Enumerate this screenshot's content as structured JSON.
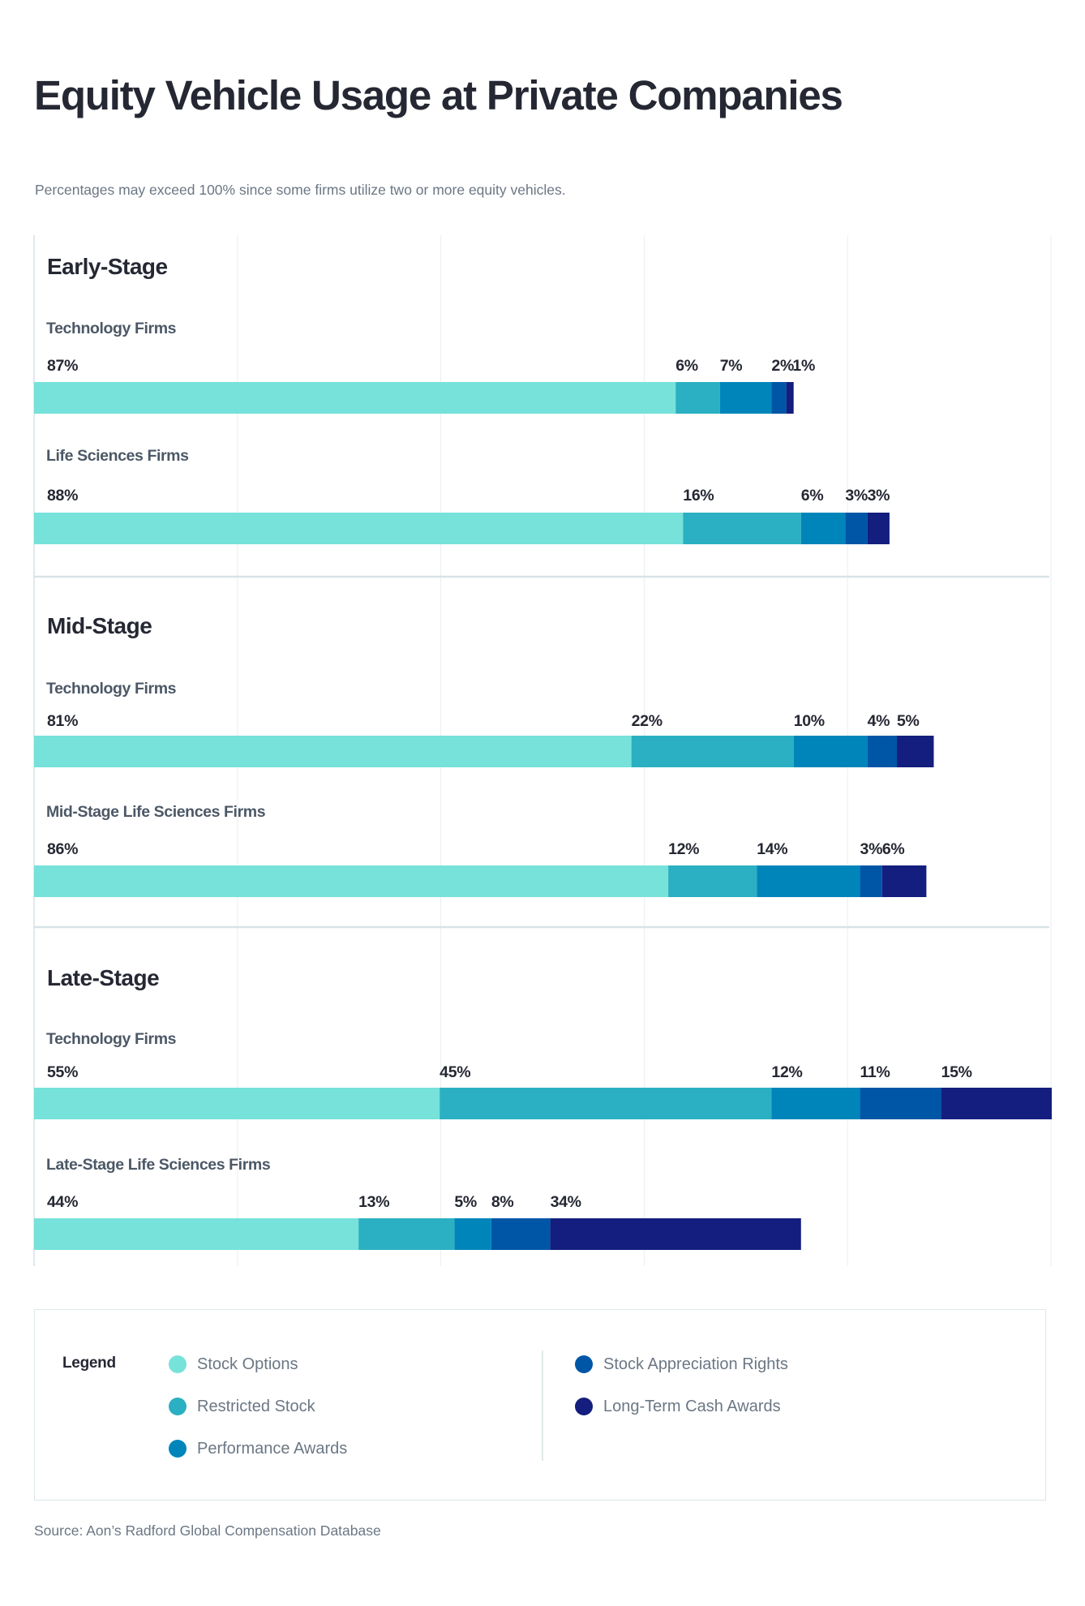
{
  "header": {
    "title": "Equity Vehicle Usage at Private Companies",
    "subtitle": "Percentages may exceed 100% since some firms utilize two or more equity vehicles."
  },
  "chart_data": {
    "type": "bar",
    "orientation": "horizontal",
    "stacked": true,
    "title": "Equity Vehicle Usage at Private Companies",
    "subtitle": "Percentages may exceed 100% since some firms utilize two or more equity vehicles.",
    "xlabel": "",
    "ylabel": "",
    "unit": "%",
    "xlim": [
      0,
      138
    ],
    "grid": true,
    "legend_position": "bottom",
    "series": [
      {
        "name": "Stock Options",
        "color": "#76E2DA"
      },
      {
        "name": "Restricted Stock",
        "color": "#2AB0C2"
      },
      {
        "name": "Performance Awards",
        "color": "#0085BA"
      },
      {
        "name": "Stock Appreciation Rights",
        "color": "#0056A6"
      },
      {
        "name": "Long-Term Cash Awards",
        "color": "#141E7E"
      }
    ],
    "groups": [
      {
        "name": "Early-Stage",
        "bars": [
          {
            "label": "Technology Firms",
            "values": [
              87,
              6,
              7,
              2,
              1
            ]
          },
          {
            "label": "Life Sciences Firms",
            "values": [
              88,
              16,
              6,
              3,
              3
            ]
          }
        ]
      },
      {
        "name": "Mid-Stage",
        "bars": [
          {
            "label": "Technology Firms",
            "values": [
              81,
              22,
              10,
              4,
              5
            ]
          },
          {
            "label": "Mid-Stage Life Sciences Firms",
            "values": [
              86,
              12,
              14,
              3,
              6
            ]
          }
        ]
      },
      {
        "name": "Late-Stage",
        "bars": [
          {
            "label": "Technology Firms",
            "values": [
              55,
              45,
              12,
              11,
              15
            ]
          },
          {
            "label": "Late-Stage Life Sciences Firms",
            "values": [
              44,
              13,
              5,
              8,
              34
            ]
          }
        ]
      }
    ]
  },
  "legend": {
    "title": "Legend",
    "items": [
      {
        "label": "Stock Options",
        "color": "#76E2DA"
      },
      {
        "label": "Restricted Stock",
        "color": "#2AB0C2"
      },
      {
        "label": "Performance Awards",
        "color": "#0085BA"
      },
      {
        "label": "Stock Appreciation Rights",
        "color": "#0056A6"
      },
      {
        "label": "Long-Term Cash Awards",
        "color": "#141E7E"
      }
    ]
  },
  "footer": {
    "source": "Source: Aon’s Radford Global Compensation Database"
  }
}
